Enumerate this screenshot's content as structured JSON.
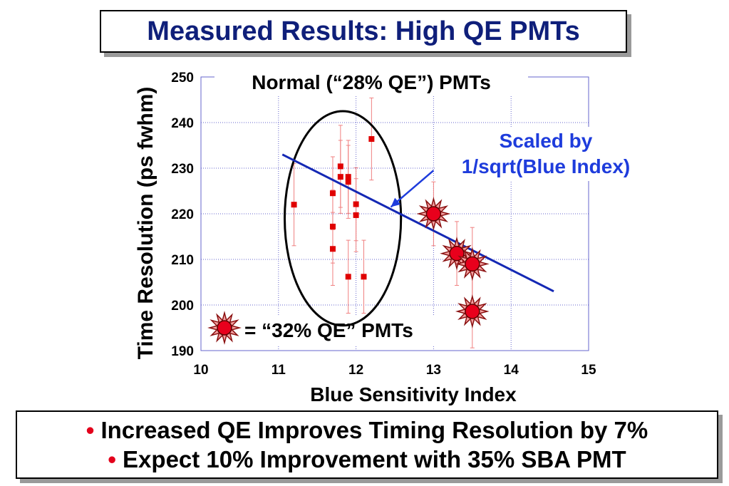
{
  "title": "Measured Results: High QE PMTs",
  "bullets": [
    {
      "marker": "•",
      "text": "Increased QE Improves Timing Resolution by 7%"
    },
    {
      "marker": "•",
      "text": "Expect 10% Improvement with 35% SBA PMT"
    }
  ],
  "colors": {
    "title": "#0f1f7a",
    "normal_marker": "#e00000",
    "errorbar": "#f08080",
    "fit_line": "#1428b4",
    "annotation": "#1e3cdc",
    "star_fill": "#e8001c",
    "star_spikes": "#8a1010",
    "grid": "#6666cc",
    "bullet_marker": "#e3001b"
  },
  "chart_data": {
    "type": "scatter",
    "xlabel": "Blue Sensitivity Index",
    "ylabel": "Time Resolution (ps fwhm)",
    "xlim": [
      10,
      15
    ],
    "ylim": [
      190,
      250
    ],
    "xticks": [
      "10",
      "11",
      "12",
      "13",
      "14",
      "15"
    ],
    "yticks": [
      "190",
      "200",
      "210",
      "220",
      "230",
      "240",
      "250"
    ],
    "grid": true,
    "series": [
      {
        "name": "Normal (“28% QE”) PMTs",
        "marker": "square",
        "points": [
          {
            "x": 11.2,
            "y": 222,
            "err": 9
          },
          {
            "x": 11.7,
            "y": 224.5,
            "err": 8
          },
          {
            "x": 11.7,
            "y": 217.2,
            "err": 8
          },
          {
            "x": 11.7,
            "y": 212.3,
            "err": 8
          },
          {
            "x": 11.8,
            "y": 230.4,
            "err": 9
          },
          {
            "x": 11.8,
            "y": 228.1,
            "err": 8
          },
          {
            "x": 11.9,
            "y": 228.1,
            "err": 8
          },
          {
            "x": 11.9,
            "y": 227.0,
            "err": 8
          },
          {
            "x": 11.9,
            "y": 206.2,
            "err": 8
          },
          {
            "x": 12.0,
            "y": 222.1,
            "err": 8
          },
          {
            "x": 12.0,
            "y": 219.7,
            "err": 8
          },
          {
            "x": 12.1,
            "y": 206.2,
            "err": 8
          },
          {
            "x": 12.2,
            "y": 236.4,
            "err": 9
          }
        ]
      },
      {
        "name": "= “32% QE” PMTs",
        "marker": "star",
        "points": [
          {
            "x": 13.0,
            "y": 220.0,
            "err": 7
          },
          {
            "x": 13.3,
            "y": 211.3,
            "err": 7
          },
          {
            "x": 13.5,
            "y": 209.0,
            "err": 8
          },
          {
            "x": 13.5,
            "y": 198.6,
            "err": 8
          }
        ]
      }
    ],
    "fit_line": {
      "label": "Scaled by 1/sqrt(Blue Index)",
      "label_lines": [
        "Scaled by",
        "1/sqrt(Blue Index)"
      ],
      "x": [
        11.05,
        14.55
      ],
      "y": [
        233.0,
        203.0
      ]
    },
    "annotations": {
      "normal_label": "Normal (“28% QE”) PMTs",
      "star_legend": "= “32% QE” PMTs",
      "ellipse_center": [
        11.83,
        219
      ],
      "ellipse_radii": [
        0.75,
        23.5
      ],
      "arrow_from": [
        13.0,
        229.5
      ],
      "arrow_to": [
        12.45,
        221.5
      ]
    }
  }
}
